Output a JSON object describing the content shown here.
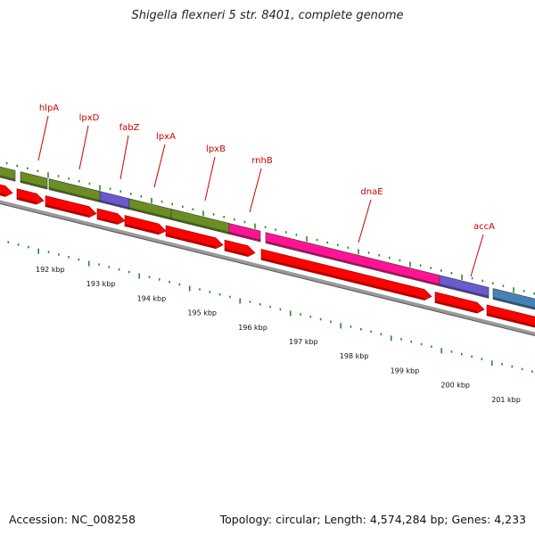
{
  "title": "Shigella flexneri 5 str. 8401, complete genome",
  "footer": {
    "accession": "Accession: NC_008258",
    "summary": "Topology: circular; Length: 4,574,284 bp; Genes: 4,233"
  },
  "colors": {
    "backbone": "#808080",
    "cds": "#ff0000",
    "olive": "#6b8e23",
    "purple": "#6a5acd",
    "magenta": "#ff1493",
    "steelblue": "#4682b4",
    "label": "#cc0000",
    "tick": "#228b22"
  },
  "gene_labels": [
    {
      "name": "hlpA"
    },
    {
      "name": "lpxD"
    },
    {
      "name": "fabZ"
    },
    {
      "name": "lpxA"
    },
    {
      "name": "lpxB"
    },
    {
      "name": "rnhB"
    },
    {
      "name": "dnaE"
    },
    {
      "name": "accA"
    }
  ],
  "kbp_ticks": [
    "192 kbp",
    "193 kbp",
    "194 kbp",
    "195 kbp",
    "196 kbp",
    "197 kbp",
    "198 kbp",
    "199 kbp",
    "200 kbp",
    "201 kbp"
  ]
}
